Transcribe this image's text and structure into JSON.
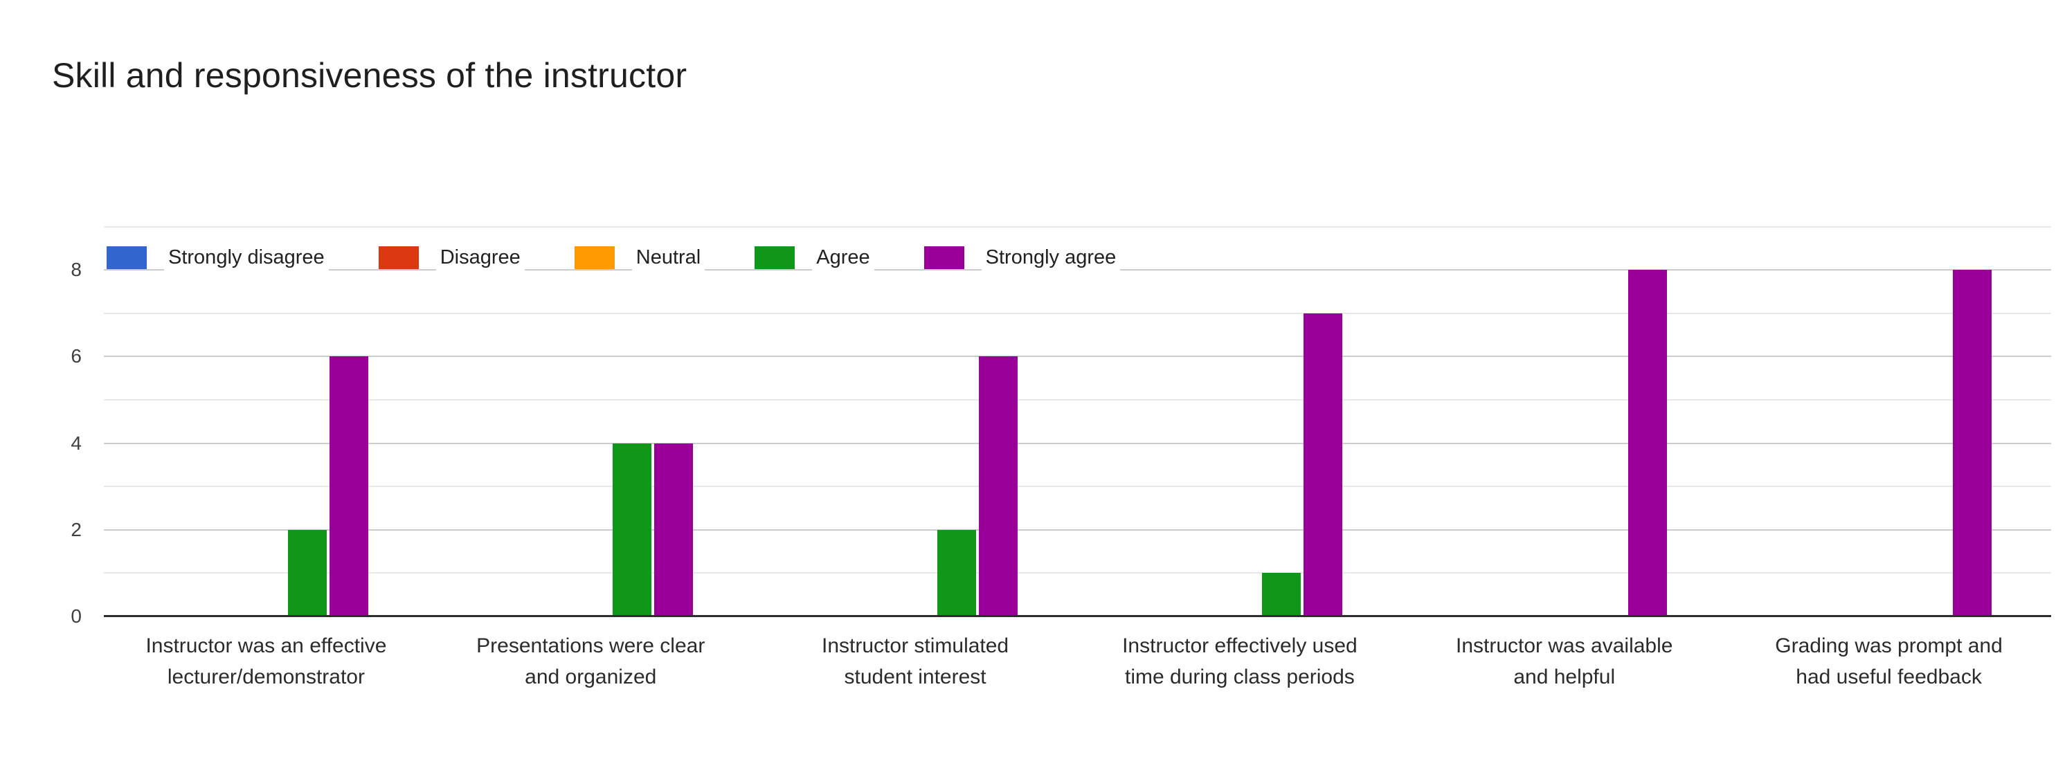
{
  "title": "Skill and responsiveness of the instructor",
  "chart_data": {
    "type": "bar",
    "title": "Skill and responsiveness of the instructor",
    "categories": [
      "Instructor was an effective lecturer/demonstrator",
      "Presentations were clear and organized",
      "Instructor stimulated student interest",
      "Instructor effectively used time during class periods",
      "Instructor was available and helpful",
      "Grading was prompt and had useful feedback"
    ],
    "category_lines": [
      [
        "Instructor was an effective",
        "lecturer/demonstrator"
      ],
      [
        "Presentations were clear",
        "and organized"
      ],
      [
        "Instructor stimulated",
        "student interest"
      ],
      [
        "Instructor effectively used",
        "time during class periods"
      ],
      [
        "Instructor was available",
        "and helpful"
      ],
      [
        "Grading was prompt and",
        "had useful feedback"
      ]
    ],
    "series": [
      {
        "name": "Strongly disagree",
        "color": "#3366cc",
        "values": [
          0,
          0,
          0,
          0,
          0,
          0
        ]
      },
      {
        "name": "Disagree",
        "color": "#dc3912",
        "values": [
          0,
          0,
          0,
          0,
          0,
          0
        ]
      },
      {
        "name": "Neutral",
        "color": "#ff9900",
        "values": [
          0,
          0,
          0,
          0,
          0,
          0
        ]
      },
      {
        "name": "Agree",
        "color": "#109618",
        "values": [
          2,
          4,
          2,
          1,
          0,
          0
        ]
      },
      {
        "name": "Strongly agree",
        "color": "#990099",
        "values": [
          6,
          4,
          6,
          7,
          8,
          8
        ]
      }
    ],
    "ylim": [
      0,
      8
    ],
    "yticks": [
      0,
      2,
      4,
      6,
      8
    ],
    "minor_gridlines": [
      1,
      3,
      5,
      7,
      9
    ],
    "grid": true,
    "legend_position": "top",
    "xlabel": "",
    "ylabel": ""
  },
  "style": {
    "major_grid_color": "#cccccc",
    "minor_grid_color": "#e8e8e8",
    "baseline_color": "#2d2d2d",
    "background": "#ffffff"
  }
}
